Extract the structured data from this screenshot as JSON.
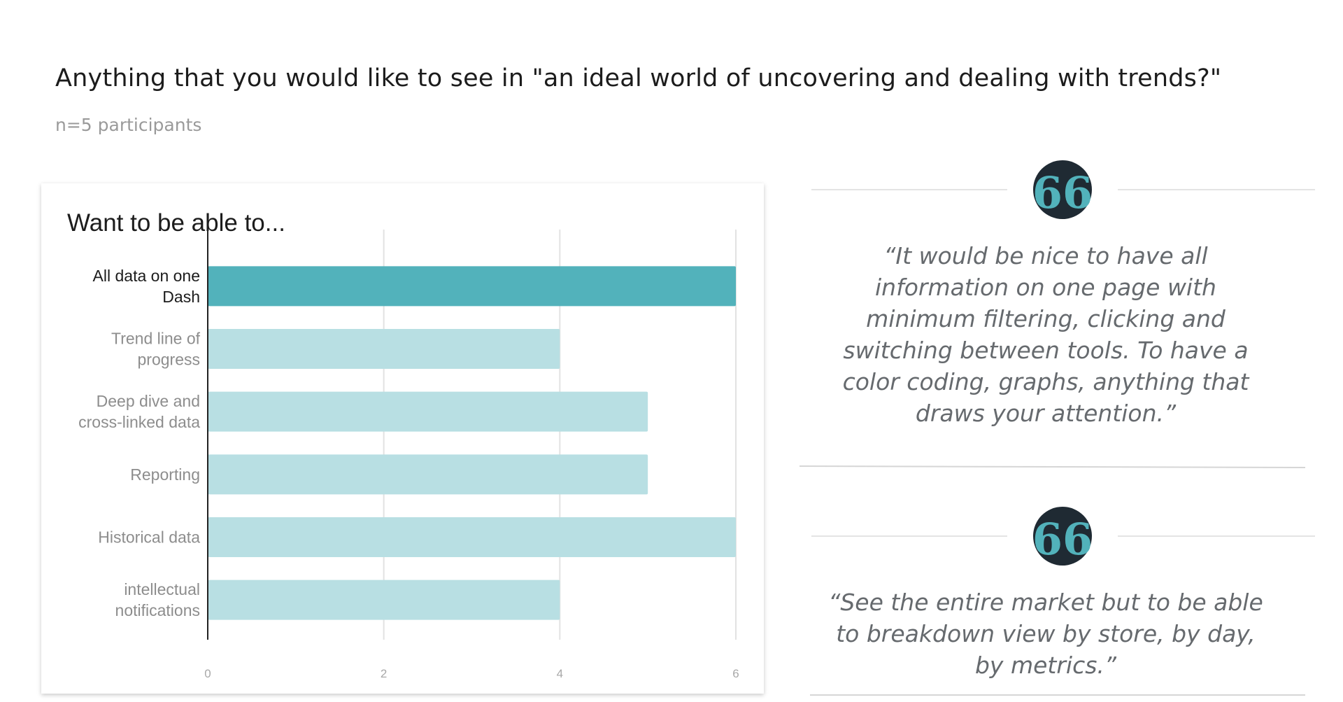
{
  "header": {
    "title": "Anything that you would like to see in \"an ideal world of uncovering and dealing with trends?\"",
    "subtitle": "n=5 participants"
  },
  "colors": {
    "highlight_bar": "#52b2bb",
    "normal_bar": "#b8dfe3",
    "quote_badge": "#1f2a33",
    "quote_mark": "#52b2bb"
  },
  "chart_data": {
    "type": "bar",
    "orientation": "horizontal",
    "title": "Want to be able to...",
    "categories": [
      [
        "All data on one",
        "Dash"
      ],
      [
        "Trend line of",
        "progress"
      ],
      [
        "Deep dive and",
        "cross-linked data"
      ],
      [
        "Reporting"
      ],
      [
        "Historical data"
      ],
      [
        "intellectual",
        "notifications"
      ]
    ],
    "values": [
      6,
      4,
      5,
      5,
      6,
      4
    ],
    "highlighted_index": 0,
    "xlim": [
      0,
      6
    ],
    "xticks": [
      0,
      2,
      4,
      6
    ],
    "grid": true
  },
  "quotes": [
    {
      "icon": "quote-icon",
      "mark": "66",
      "text": "“It would be nice to have all information on one page with minimum filtering, clicking and switching between tools. To have a color coding, graphs, anything that draws your attention.”"
    },
    {
      "icon": "quote-icon",
      "mark": "66",
      "text": "“See the entire market but to be able to breakdown view by store, by day, by metrics.”"
    }
  ]
}
